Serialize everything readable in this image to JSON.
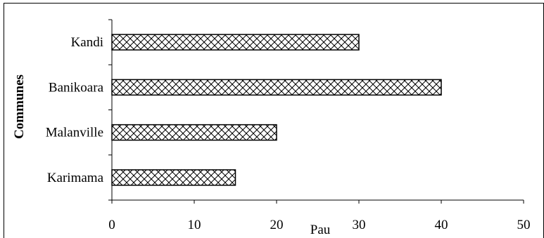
{
  "chart_data": {
    "type": "bar",
    "orientation": "horizontal",
    "title": "",
    "xlabel": "Pau",
    "ylabel": "Communes",
    "categories": [
      "Kandi",
      "Banikoara",
      "Malanville",
      "Karimama"
    ],
    "values": [
      30,
      40,
      20,
      15
    ],
    "xlim": [
      0,
      50
    ],
    "xticks": [
      0,
      10,
      20,
      30,
      40,
      50
    ],
    "grid": false,
    "bar_pattern": "crosshatch",
    "colors": {
      "bar_fill": "#ffffff",
      "bar_stroke": "#000000",
      "axis": "#000000"
    }
  }
}
